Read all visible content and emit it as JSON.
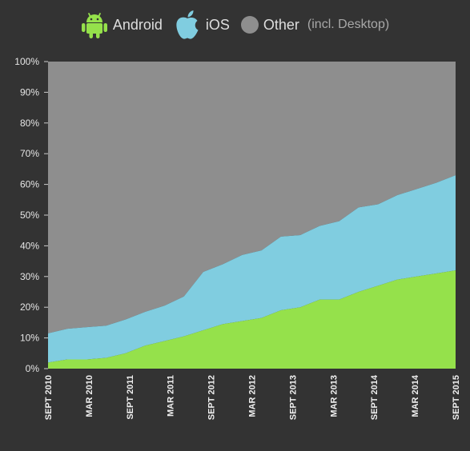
{
  "legend": {
    "android_label": "Android",
    "ios_label": "iOS",
    "other_label": "Other",
    "other_note": "(incl. Desktop)"
  },
  "colors": {
    "android": "#95e14b",
    "ios": "#80cde0",
    "other": "#8e8e8e",
    "background": "#333333"
  },
  "chart_data": {
    "type": "area",
    "stacked": true,
    "y_ticks": [
      "0%",
      "10%",
      "20%",
      "30%",
      "40%",
      "50%",
      "60%",
      "70%",
      "80%",
      "90%",
      "100%"
    ],
    "x_tick_labels": [
      "SEPT 2010",
      "MAR 2010",
      "SEPT 2011",
      "MAR 2011",
      "SEPT 2012",
      "MAR 2012",
      "SEPT 2013",
      "MAR 2013",
      "SEPT 2014",
      "MAR 2014",
      "SEPT 2015"
    ],
    "ylim": [
      0,
      100
    ],
    "legend_position": "top",
    "series": [
      {
        "name": "Android",
        "values": [
          2,
          3,
          3,
          3.5,
          5,
          7.5,
          9,
          10.5,
          12.5,
          14.5,
          15.5,
          16.5,
          19,
          20,
          22.5,
          22.5,
          25,
          27,
          29,
          30,
          31,
          32
        ]
      },
      {
        "name": "iOS",
        "values": [
          9.5,
          10,
          10.5,
          10.5,
          11,
          11,
          11.5,
          13,
          19,
          19.5,
          21.5,
          22,
          24,
          23.5,
          24,
          25.5,
          27.5,
          26.5,
          27.5,
          28.5,
          29.5,
          31
        ]
      },
      {
        "name": "Other",
        "values": [
          88.5,
          87,
          86.5,
          86,
          84,
          81.5,
          79.5,
          76.5,
          68.5,
          66,
          63,
          61.5,
          57,
          56.5,
          53.5,
          52,
          47.5,
          46.5,
          43.5,
          41.5,
          39.5,
          37
        ]
      }
    ]
  }
}
